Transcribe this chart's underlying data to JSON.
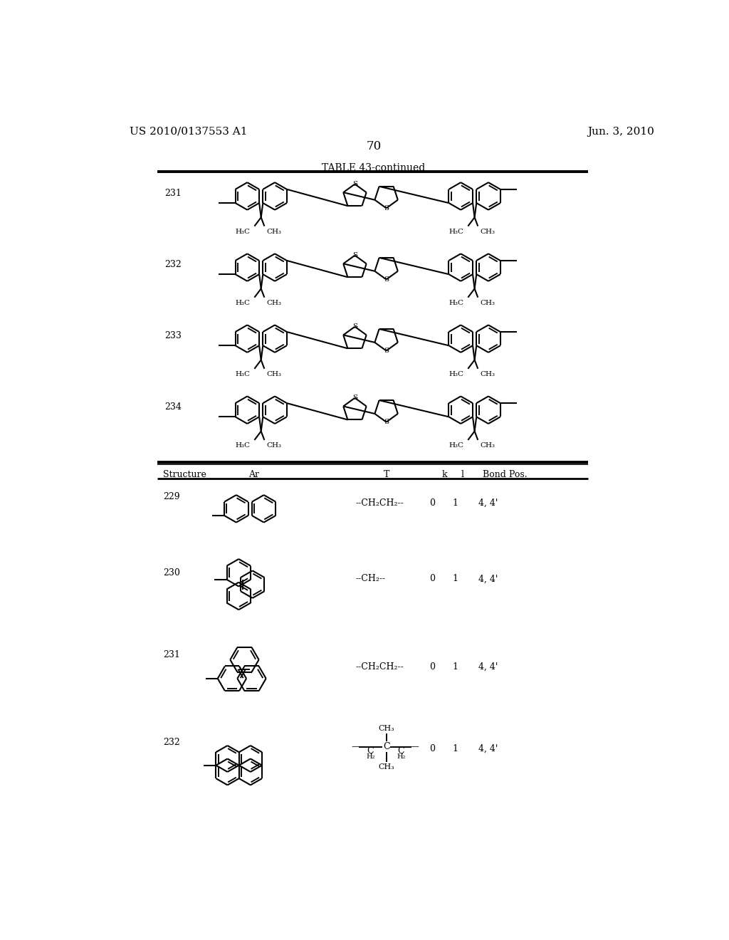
{
  "patent_number": "US 2010/0137553 A1",
  "date": "Jun. 3, 2010",
  "page_number": "70",
  "table_title": "TABLE 43-continued",
  "background_color": "#ffffff",
  "header_row": [
    "Structure",
    "Ar",
    "T",
    "k",
    "l",
    "Bond Pos."
  ],
  "upper_rows": [
    231,
    232,
    233,
    234
  ],
  "lower_rows": [
    {
      "id": "229",
      "T": "--CH₂CH₂--",
      "k": "0",
      "l": "1",
      "bond_pos": "4, 4'"
    },
    {
      "id": "230",
      "T": "--CH₂--",
      "k": "0",
      "l": "1",
      "bond_pos": "4, 4'"
    },
    {
      "id": "231",
      "T": "--CH₂CH₂--",
      "k": "0",
      "l": "1",
      "bond_pos": "4, 4'"
    },
    {
      "id": "232",
      "k": "0",
      "l": "1",
      "bond_pos": "4, 4'"
    }
  ]
}
